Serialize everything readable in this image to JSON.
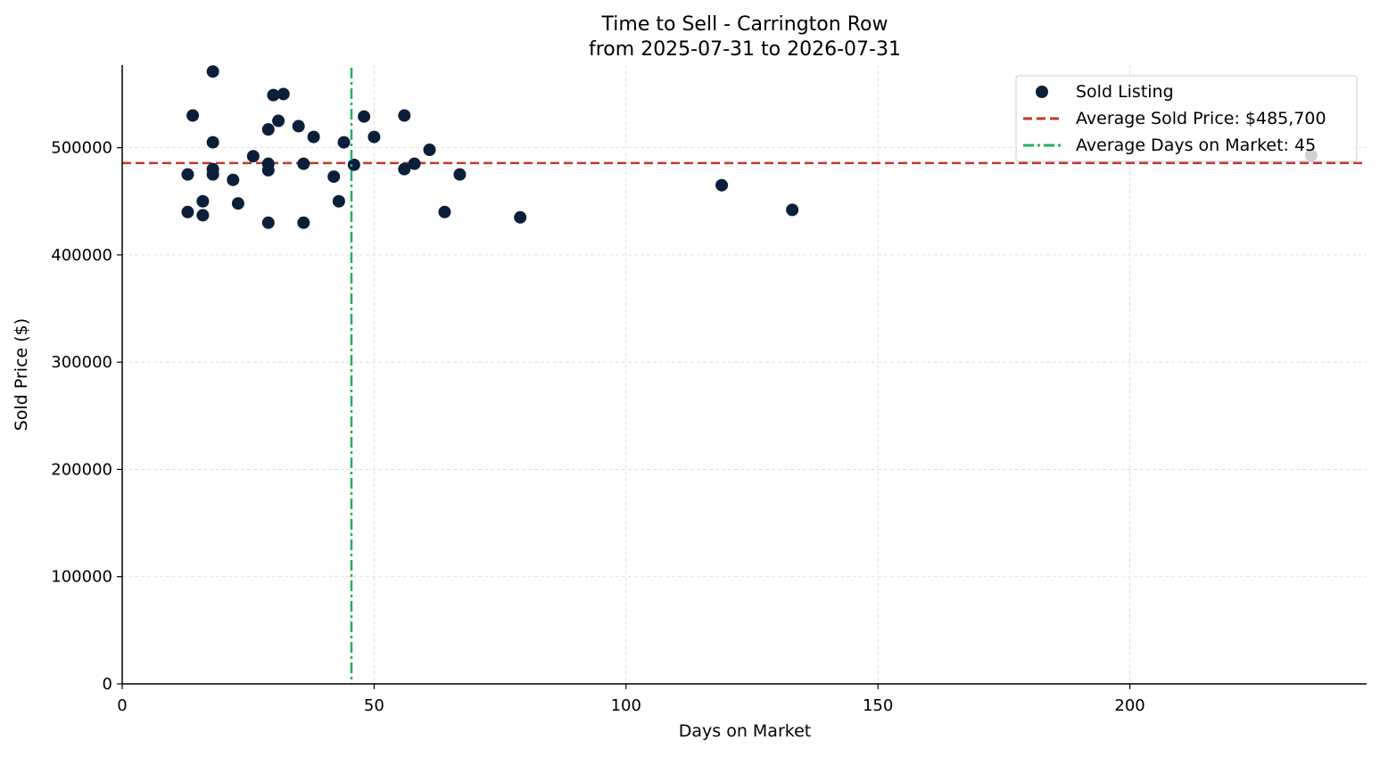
{
  "chart_data": {
    "type": "scatter",
    "title": "Time to Sell - Carrington Row",
    "subtitle": "from 2025-07-31 to 2026-07-31",
    "xlabel": "Days on Market",
    "ylabel": "Sold Price ($)",
    "xlim": [
      0,
      247
    ],
    "ylim": [
      0,
      577000
    ],
    "xticks": [
      0,
      50,
      100,
      150,
      200
    ],
    "yticks": [
      0,
      100000,
      200000,
      300000,
      400000,
      500000
    ],
    "grid": true,
    "legend_position": "top-right",
    "colors": {
      "points": "#0b1f3a",
      "avg_price_line": "#c0392b",
      "avg_days_line": "#27ae60",
      "grid": "#d9d9d9"
    },
    "series": [
      {
        "name": "Sold Listing",
        "points": [
          {
            "x": 13,
            "y": 475000
          },
          {
            "x": 13,
            "y": 440000
          },
          {
            "x": 14,
            "y": 530000
          },
          {
            "x": 16,
            "y": 450000
          },
          {
            "x": 16,
            "y": 437000
          },
          {
            "x": 18,
            "y": 571000
          },
          {
            "x": 18,
            "y": 505000
          },
          {
            "x": 18,
            "y": 480000
          },
          {
            "x": 18,
            "y": 475000
          },
          {
            "x": 22,
            "y": 470000
          },
          {
            "x": 23,
            "y": 448000
          },
          {
            "x": 26,
            "y": 492000
          },
          {
            "x": 29,
            "y": 517000
          },
          {
            "x": 29,
            "y": 485000
          },
          {
            "x": 29,
            "y": 479000
          },
          {
            "x": 29,
            "y": 430000
          },
          {
            "x": 30,
            "y": 549000
          },
          {
            "x": 31,
            "y": 525000
          },
          {
            "x": 32,
            "y": 550000
          },
          {
            "x": 35,
            "y": 520000
          },
          {
            "x": 36,
            "y": 485000
          },
          {
            "x": 36,
            "y": 430000
          },
          {
            "x": 38,
            "y": 510000
          },
          {
            "x": 42,
            "y": 473000
          },
          {
            "x": 43,
            "y": 450000
          },
          {
            "x": 44,
            "y": 505000
          },
          {
            "x": 46,
            "y": 484000
          },
          {
            "x": 48,
            "y": 529000
          },
          {
            "x": 50,
            "y": 510000
          },
          {
            "x": 56,
            "y": 530000
          },
          {
            "x": 56,
            "y": 480000
          },
          {
            "x": 58,
            "y": 485000
          },
          {
            "x": 61,
            "y": 498000
          },
          {
            "x": 64,
            "y": 440000
          },
          {
            "x": 67,
            "y": 475000
          },
          {
            "x": 79,
            "y": 435000
          },
          {
            "x": 119,
            "y": 465000
          },
          {
            "x": 133,
            "y": 442000
          },
          {
            "x": 236,
            "y": 493000
          }
        ]
      }
    ],
    "reference_lines": {
      "avg_price": {
        "label": "Average Sold Price: $485,700",
        "value": 485700,
        "style": "dashed"
      },
      "avg_days": {
        "label": "Average Days on Market: 45",
        "value": 45.5,
        "style": "dashdot"
      }
    }
  }
}
